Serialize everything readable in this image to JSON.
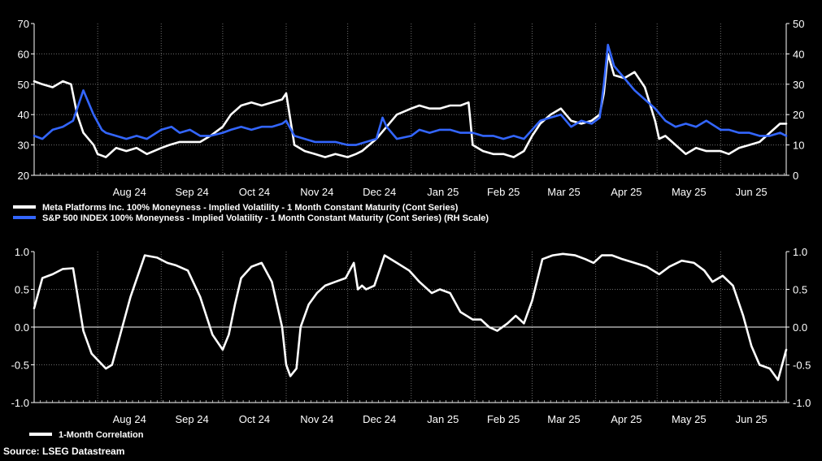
{
  "source": "Source: LSEG Datastream",
  "months": [
    "Aug 24",
    "Sep 24",
    "Oct 24",
    "Nov 24",
    "Dec 24",
    "Jan 25",
    "Feb 25",
    "Mar 25",
    "Apr 25",
    "May 25",
    "Jun 25"
  ],
  "chart_data": [
    {
      "type": "line",
      "x_range": [
        "2024-07-01",
        "2025-07-03"
      ],
      "left_axis": {
        "ylim": [
          20,
          70
        ],
        "ticks": [
          "20",
          "30",
          "40",
          "50",
          "60",
          "70"
        ]
      },
      "right_axis": {
        "ylim": [
          0,
          50
        ],
        "ticks": [
          "0",
          "10",
          "20",
          "30",
          "40",
          "50"
        ]
      },
      "grid": true,
      "legend_position": "below",
      "series": [
        {
          "name": "Meta Platforms Inc. 100% Moneyness - Implied Volatility - 1 Month Constant Maturity (Cont Series)",
          "color": "#ffffff",
          "axis": "left",
          "x": [
            "2024-07-01",
            "2024-07-05",
            "2024-07-10",
            "2024-07-15",
            "2024-07-19",
            "2024-07-22",
            "2024-07-25",
            "2024-07-30",
            "2024-08-01",
            "2024-08-05",
            "2024-08-10",
            "2024-08-15",
            "2024-08-20",
            "2024-08-25",
            "2024-09-01",
            "2024-09-05",
            "2024-09-10",
            "2024-09-15",
            "2024-09-20",
            "2024-09-25",
            "2024-10-01",
            "2024-10-05",
            "2024-10-10",
            "2024-10-15",
            "2024-10-20",
            "2024-10-25",
            "2024-10-30",
            "2024-11-01",
            "2024-11-05",
            "2024-11-10",
            "2024-11-15",
            "2024-11-20",
            "2024-11-25",
            "2024-12-01",
            "2024-12-05",
            "2024-12-08",
            "2024-12-15",
            "2024-12-20",
            "2024-12-25",
            "2025-01-01",
            "2025-01-05",
            "2025-01-10",
            "2025-01-15",
            "2025-01-20",
            "2025-01-25",
            "2025-01-29",
            "2025-01-31",
            "2025-02-05",
            "2025-02-10",
            "2025-02-15",
            "2025-02-20",
            "2025-02-25",
            "2025-03-01",
            "2025-03-05",
            "2025-03-10",
            "2025-03-15",
            "2025-03-20",
            "2025-03-25",
            "2025-03-30",
            "2025-04-03",
            "2025-04-05",
            "2025-04-07",
            "2025-04-10",
            "2025-04-15",
            "2025-04-20",
            "2025-04-25",
            "2025-04-30",
            "2025-05-02",
            "2025-05-05",
            "2025-05-10",
            "2025-05-15",
            "2025-05-20",
            "2025-05-25",
            "2025-06-01",
            "2025-06-05",
            "2025-06-10",
            "2025-06-15",
            "2025-06-20",
            "2025-06-25",
            "2025-06-30",
            "2025-07-03"
          ],
          "values": [
            51,
            50,
            49,
            51,
            50,
            40,
            34,
            30,
            27,
            26,
            29,
            28,
            29,
            27,
            29,
            30,
            31,
            31,
            31,
            33,
            36,
            40,
            43,
            44,
            43,
            44,
            45,
            47,
            30,
            28,
            27,
            26,
            27,
            26,
            27,
            28,
            32,
            36,
            40,
            42,
            43,
            42,
            42,
            43,
            43,
            44,
            30,
            28,
            27,
            27,
            26,
            28,
            33,
            37,
            40,
            42,
            38,
            37,
            38,
            40,
            47,
            60,
            53,
            52,
            54,
            49,
            38,
            32,
            33,
            30,
            27,
            29,
            28,
            28,
            27,
            29,
            30,
            31,
            34,
            37,
            37
          ]
        },
        {
          "name": "S&P 500 INDEX 100% Moneyness - Implied Volatility - 1 Month Constant Maturity (Cont Series) (RH Scale)",
          "color": "#3366ff",
          "axis": "right",
          "x": [
            "2024-07-01",
            "2024-07-05",
            "2024-07-10",
            "2024-07-15",
            "2024-07-20",
            "2024-07-25",
            "2024-07-30",
            "2024-08-03",
            "2024-08-05",
            "2024-08-10",
            "2024-08-15",
            "2024-08-20",
            "2024-08-25",
            "2024-09-01",
            "2024-09-06",
            "2024-09-10",
            "2024-09-15",
            "2024-09-20",
            "2024-09-25",
            "2024-10-01",
            "2024-10-05",
            "2024-10-10",
            "2024-10-15",
            "2024-10-20",
            "2024-10-25",
            "2024-10-30",
            "2024-11-01",
            "2024-11-05",
            "2024-11-10",
            "2024-11-15",
            "2024-11-20",
            "2024-11-25",
            "2024-12-01",
            "2024-12-05",
            "2024-12-10",
            "2024-12-15",
            "2024-12-18",
            "2024-12-20",
            "2024-12-25",
            "2025-01-01",
            "2025-01-05",
            "2025-01-10",
            "2025-01-15",
            "2025-01-20",
            "2025-01-25",
            "2025-01-31",
            "2025-02-05",
            "2025-02-10",
            "2025-02-15",
            "2025-02-20",
            "2025-02-25",
            "2025-03-01",
            "2025-03-05",
            "2025-03-10",
            "2025-03-15",
            "2025-03-20",
            "2025-03-25",
            "2025-03-30",
            "2025-04-03",
            "2025-04-05",
            "2025-04-07",
            "2025-04-10",
            "2025-04-15",
            "2025-04-20",
            "2025-04-25",
            "2025-04-30",
            "2025-05-05",
            "2025-05-10",
            "2025-05-15",
            "2025-05-20",
            "2025-05-25",
            "2025-06-01",
            "2025-06-05",
            "2025-06-10",
            "2025-06-15",
            "2025-06-20",
            "2025-06-25",
            "2025-06-30",
            "2025-07-03"
          ],
          "values": [
            13,
            12,
            15,
            16,
            18,
            28,
            20,
            15,
            14,
            13,
            12,
            13,
            12,
            15,
            16,
            14,
            15,
            13,
            13,
            14,
            15,
            16,
            15,
            16,
            16,
            17,
            18,
            13,
            12,
            11,
            11,
            11,
            10,
            10,
            11,
            12,
            19,
            16,
            12,
            13,
            15,
            14,
            15,
            15,
            14,
            14,
            13,
            13,
            12,
            13,
            12,
            15,
            18,
            19,
            20,
            16,
            18,
            17,
            19,
            30,
            43,
            36,
            32,
            28,
            25,
            22,
            18,
            16,
            17,
            16,
            18,
            15,
            15,
            14,
            14,
            13,
            13,
            14,
            13
          ]
        }
      ]
    },
    {
      "type": "line",
      "x_range": [
        "2024-07-01",
        "2025-07-03"
      ],
      "left_axis": {
        "ylim": [
          -1.0,
          1.0
        ],
        "ticks": [
          "-1.0",
          "-0.5",
          "0.0",
          "0.5",
          "1.0"
        ]
      },
      "right_axis": {
        "ylim": [
          -1.0,
          1.0
        ],
        "ticks": [
          "-1.0",
          "-0.5",
          "0.0",
          "0.5",
          "1.0"
        ]
      },
      "grid": true,
      "zero_line": true,
      "legend_position": "below",
      "series": [
        {
          "name": "1-Month Correlation",
          "color": "#ffffff",
          "axis": "left",
          "x": [
            "2024-07-01",
            "2024-07-05",
            "2024-07-10",
            "2024-07-15",
            "2024-07-20",
            "2024-07-25",
            "2024-07-29",
            "2024-08-05",
            "2024-08-08",
            "2024-08-12",
            "2024-08-17",
            "2024-08-24",
            "2024-08-30",
            "2024-09-04",
            "2024-09-08",
            "2024-09-14",
            "2024-09-20",
            "2024-09-26",
            "2024-10-01",
            "2024-10-04",
            "2024-10-07",
            "2024-10-10",
            "2024-10-15",
            "2024-10-20",
            "2024-10-25",
            "2024-10-30",
            "2024-11-01",
            "2024-11-03",
            "2024-11-06",
            "2024-11-08",
            "2024-11-12",
            "2024-11-16",
            "2024-11-20",
            "2024-11-25",
            "2024-11-30",
            "2024-12-04",
            "2024-12-06",
            "2024-12-08",
            "2024-12-10",
            "2024-12-14",
            "2024-12-19",
            "2024-12-25",
            "2024-12-31",
            "2025-01-05",
            "2025-01-11",
            "2025-01-15",
            "2025-01-20",
            "2025-01-25",
            "2025-01-31",
            "2025-02-04",
            "2025-02-08",
            "2025-02-12",
            "2025-02-17",
            "2025-02-21",
            "2025-02-25",
            "2025-03-01",
            "2025-03-06",
            "2025-03-11",
            "2025-03-16",
            "2025-03-22",
            "2025-03-27",
            "2025-03-31",
            "2025-04-04",
            "2025-04-09",
            "2025-04-14",
            "2025-04-20",
            "2025-04-26",
            "2025-05-02",
            "2025-05-07",
            "2025-05-13",
            "2025-05-19",
            "2025-05-24",
            "2025-05-28",
            "2025-06-02",
            "2025-06-07",
            "2025-06-12",
            "2025-06-16",
            "2025-06-20",
            "2025-06-25",
            "2025-06-29",
            "2025-07-03"
          ],
          "values": [
            0.25,
            0.65,
            0.7,
            0.77,
            0.78,
            -0.05,
            -0.35,
            -0.55,
            -0.5,
            -0.1,
            0.4,
            0.95,
            0.92,
            0.85,
            0.82,
            0.75,
            0.4,
            -0.1,
            -0.3,
            -0.1,
            0.3,
            0.65,
            0.8,
            0.85,
            0.6,
            0.0,
            -0.5,
            -0.65,
            -0.55,
            0.0,
            0.3,
            0.45,
            0.55,
            0.6,
            0.65,
            0.85,
            0.5,
            0.55,
            0.5,
            0.55,
            0.95,
            0.85,
            0.75,
            0.6,
            0.45,
            0.5,
            0.45,
            0.2,
            0.1,
            0.1,
            0.0,
            -0.05,
            0.05,
            0.15,
            0.05,
            0.35,
            0.9,
            0.95,
            0.97,
            0.95,
            0.9,
            0.85,
            0.95,
            0.95,
            0.9,
            0.85,
            0.8,
            0.7,
            0.8,
            0.88,
            0.85,
            0.75,
            0.6,
            0.68,
            0.55,
            0.15,
            -0.25,
            -0.5,
            -0.55,
            -0.7,
            -0.3
          ]
        }
      ]
    }
  ]
}
